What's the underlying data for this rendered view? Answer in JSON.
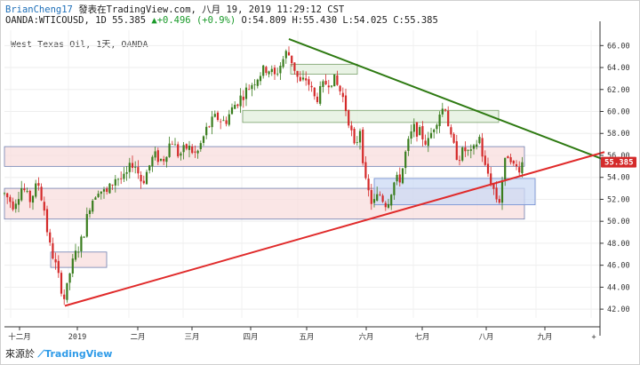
{
  "header": {
    "author": "BrianCheng17",
    "published": "發表在TradingView.com, 八月 19, 2019 11:29:12 CST",
    "symbol": "OANDA:WTICOUSD, 1D 55.385",
    "arrow": "▲",
    "change": "+0.496 (+0.9%)",
    "ohlc": "O:54.809 H:55.430 L:54.025 C:55.385"
  },
  "inner_title": "West Texas Oil, 1天, OANDA",
  "footer": {
    "prefix": "來源於",
    "brand": "TradingView"
  },
  "colors": {
    "up": "#3a7d1e",
    "down": "#d42a2a",
    "resistance": "#2e7a12",
    "support": "#e02a2a",
    "price_label": "#d42a2a"
  },
  "chart_data": {
    "type": "candlestick",
    "title": "West Texas Oil, 1天, OANDA",
    "ylim": [
      41.2,
      67.4
    ],
    "yticks": [
      42,
      44,
      46,
      48,
      50,
      52,
      54,
      56,
      58,
      60,
      62,
      64,
      66
    ],
    "xticks": [
      "十二月",
      "2019",
      "二月",
      "三月",
      "四月",
      "五月",
      "六月",
      "七月",
      "八月",
      "九月"
    ],
    "last_price": "55.385",
    "price_path": [
      [
        0,
        52.5
      ],
      [
        10,
        51.5
      ],
      [
        20,
        53.2
      ],
      [
        28,
        51.8
      ],
      [
        38,
        53.5
      ],
      [
        45,
        51
      ],
      [
        50,
        48
      ],
      [
        56,
        46.5
      ],
      [
        62,
        44.5
      ],
      [
        68,
        42.8
      ],
      [
        74,
        45.5
      ],
      [
        80,
        47
      ],
      [
        88,
        48.5
      ],
      [
        96,
        51.5
      ],
      [
        105,
        53
      ],
      [
        115,
        52.5
      ],
      [
        125,
        54
      ],
      [
        135,
        53.8
      ],
      [
        145,
        55.5
      ],
      [
        155,
        53.5
      ],
      [
        168,
        56
      ],
      [
        178,
        55.5
      ],
      [
        188,
        57.5
      ],
      [
        196,
        56
      ],
      [
        206,
        56.8
      ],
      [
        216,
        56
      ],
      [
        228,
        58.5
      ],
      [
        238,
        59.5
      ],
      [
        248,
        59
      ],
      [
        258,
        60.5
      ],
      [
        268,
        61.5
      ],
      [
        278,
        62.5
      ],
      [
        288,
        63.5
      ],
      [
        296,
        64
      ],
      [
        304,
        63.2
      ],
      [
        312,
        64.5
      ],
      [
        318,
        65.5
      ],
      [
        324,
        64.5
      ],
      [
        332,
        62.5
      ],
      [
        340,
        63
      ],
      [
        350,
        61
      ],
      [
        360,
        62.5
      ],
      [
        370,
        63
      ],
      [
        380,
        61.5
      ],
      [
        388,
        59
      ],
      [
        394,
        56.5
      ],
      [
        400,
        58.5
      ],
      [
        406,
        53.5
      ],
      [
        414,
        51.5
      ],
      [
        422,
        52.5
      ],
      [
        430,
        51.5
      ],
      [
        438,
        53.5
      ],
      [
        446,
        54
      ],
      [
        452,
        56.5
      ],
      [
        460,
        58.5
      ],
      [
        468,
        58
      ],
      [
        476,
        57
      ],
      [
        482,
        58.5
      ],
      [
        490,
        60
      ],
      [
        496,
        60.5
      ],
      [
        502,
        57.5
      ],
      [
        510,
        55.8
      ],
      [
        518,
        56.5
      ],
      [
        526,
        56
      ],
      [
        534,
        57.8
      ],
      [
        540,
        55
      ],
      [
        546,
        54
      ],
      [
        552,
        52.5
      ],
      [
        556,
        51.5
      ],
      [
        562,
        55
      ],
      [
        568,
        56.5
      ],
      [
        572,
        55
      ],
      [
        578,
        54.8
      ],
      [
        583,
        55.4
      ]
    ],
    "zones": [
      {
        "fill": "#f8dede",
        "stroke": "#6f7fb0",
        "y": [
          55.0,
          56.8
        ],
        "x": [
          0,
          585
        ]
      },
      {
        "fill": "#f8dede",
        "stroke": "#6f7fb0",
        "y": [
          50.2,
          53.0
        ],
        "x": [
          0,
          585
        ]
      },
      {
        "fill": "#cbd9f4",
        "stroke": "#6f8bd0",
        "y": [
          51.5,
          53.9
        ],
        "x": [
          416,
          597
        ]
      },
      {
        "fill": "#e2efdc",
        "stroke": "#7aa06a",
        "y": [
          59.0,
          60.1
        ],
        "x": [
          268,
          556
        ]
      },
      {
        "fill": "#e2efdc",
        "stroke": "#7aa06a",
        "y": [
          63.4,
          64.3
        ],
        "x": [
          322,
          397
        ]
      },
      {
        "fill": "#f8dede",
        "stroke": "#6f7fb0",
        "y": [
          45.8,
          47.2
        ],
        "x": [
          52,
          115
        ]
      }
    ],
    "trendlines": [
      {
        "name": "resistance",
        "from": [
          320,
          66.6
        ],
        "to": [
          675,
          55.6
        ]
      },
      {
        "name": "support",
        "from": [
          68,
          42.3
        ],
        "to": [
          675,
          56.3
        ]
      }
    ]
  }
}
